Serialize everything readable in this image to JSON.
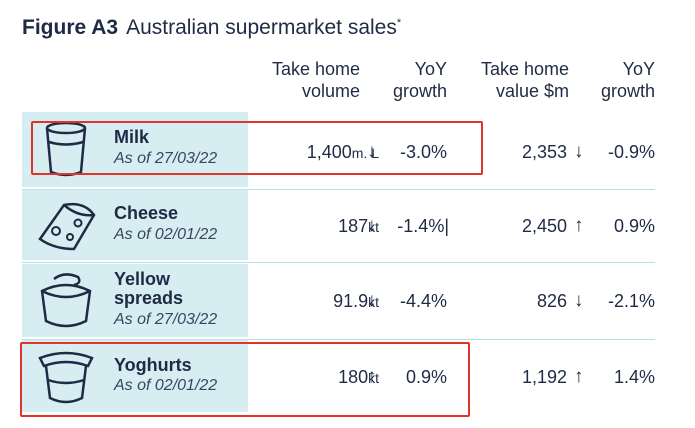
{
  "figure": {
    "label": "Figure A3",
    "title": "Australian supermarket sales",
    "footnote_mark": "*"
  },
  "columns": {
    "volume": "Take home\nvolume",
    "volume_growth": "YoY\ngrowth",
    "value": "Take home\nvalue $m",
    "value_growth": "YoY\ngrowth"
  },
  "rows": [
    {
      "name": "Milk",
      "as_of": "As of 27/03/22",
      "icon": "milk-glass-icon",
      "volume": "1,400",
      "volume_unit": "m. L",
      "volume_dir": "↓",
      "volume_growth": "-3.0%",
      "value": "2,353",
      "value_dir": "↓",
      "value_growth": "-0.9%"
    },
    {
      "name": "Cheese",
      "as_of": "As of 02/01/22",
      "icon": "cheese-icon",
      "volume": "187",
      "volume_unit": "kt",
      "volume_dir": "↓",
      "volume_growth": "-1.4%|",
      "value": "2,450",
      "value_dir": "↑",
      "value_growth": "0.9%"
    },
    {
      "name": "Yellow\nspreads",
      "as_of": "As of 27/03/22",
      "icon": "spread-tub-icon",
      "volume": "91.9",
      "volume_unit": "kt",
      "volume_dir": "↓",
      "volume_growth": "-4.4%",
      "value": "826",
      "value_dir": "↓",
      "value_growth": "-2.1%"
    },
    {
      "name": "Yoghurts",
      "as_of": "As of 02/01/22",
      "icon": "yoghurt-cup-icon",
      "volume": "180",
      "volume_unit": "kt",
      "volume_dir": "↑",
      "volume_growth": "0.9%",
      "value": "1,192",
      "value_dir": "↑",
      "value_growth": "1.4%"
    }
  ],
  "colors": {
    "text": "#1f2a44",
    "icon_cell": "#d6edf2",
    "highlight": "#e0332c"
  }
}
